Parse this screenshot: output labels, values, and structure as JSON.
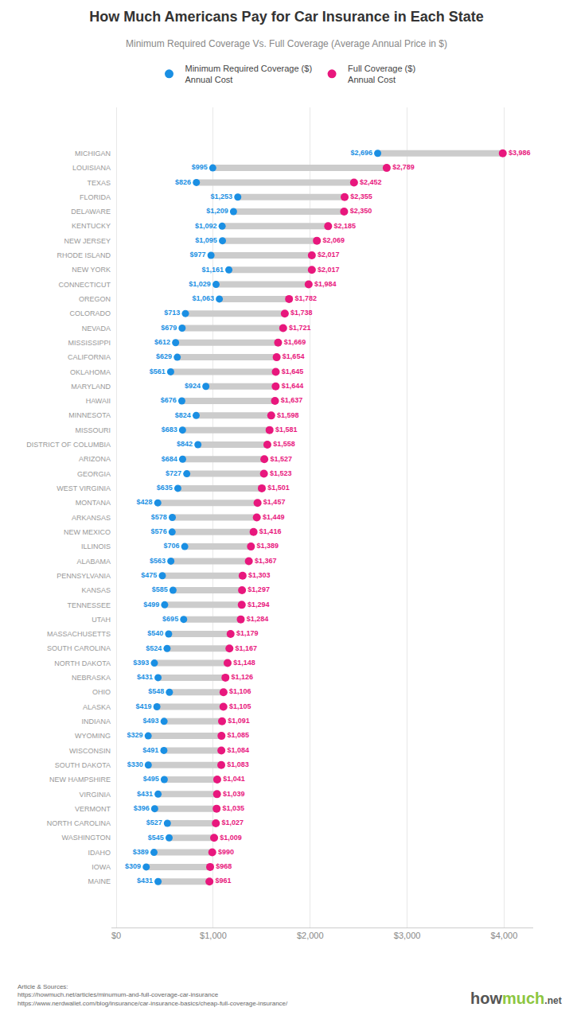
{
  "chart_data": {
    "type": "dumbbell",
    "title": "How Much Americans Pay for Car Insurance in Each State",
    "subtitle": "Minimum Required Coverage Vs. Full Coverage (Average Annual Price in $)",
    "orientation": "horizontal",
    "categories": [
      "MICHIGAN",
      "LOUISIANA",
      "TEXAS",
      "FLORIDA",
      "DELAWARE",
      "KENTUCKY",
      "NEW JERSEY",
      "RHODE ISLAND",
      "NEW YORK",
      "CONNECTICUT",
      "OREGON",
      "COLORADO",
      "NEVADA",
      "MISSISSIPPI",
      "CALIFORNIA",
      "OKLAHOMA",
      "MARYLAND",
      "HAWAII",
      "MINNESOTA",
      "MISSOURI",
      "DISTRICT OF COLUMBIA",
      "ARIZONA",
      "GEORGIA",
      "WEST VIRGINIA",
      "MONTANA",
      "ARKANSAS",
      "NEW MEXICO",
      "ILLINOIS",
      "ALABAMA",
      "PENNSYLVANIA",
      "KANSAS",
      "TENNESSEE",
      "UTAH",
      "MASSACHUSETTS",
      "SOUTH CAROLINA",
      "NORTH DAKOTA",
      "NEBRASKA",
      "OHIO",
      "ALASKA",
      "INDIANA",
      "WYOMING",
      "WISCONSIN",
      "SOUTH DAKOTA",
      "NEW HAMPSHIRE",
      "VIRGINIA",
      "VERMONT",
      "NORTH CAROLINA",
      "WASHINGTON",
      "IDAHO",
      "IOWA",
      "MAINE"
    ],
    "series": [
      {
        "name": "Minimum Required Coverage ($)\nAnnual Cost",
        "color": "#1a8fe3",
        "values": [
          2696,
          995,
          826,
          1253,
          1209,
          1092,
          1095,
          977,
          1161,
          1029,
          1063,
          713,
          679,
          612,
          629,
          561,
          924,
          676,
          824,
          683,
          842,
          684,
          727,
          635,
          428,
          578,
          576,
          706,
          563,
          475,
          585,
          499,
          695,
          540,
          524,
          393,
          431,
          548,
          419,
          493,
          329,
          491,
          330,
          495,
          431,
          396,
          527,
          545,
          389,
          309,
          431
        ],
        "value_labels": [
          "$2,696",
          "$995",
          "$826",
          "$1,253",
          "$1,209",
          "$1,092",
          "$1,095",
          "$977",
          "$1,161",
          "$1,029",
          "$1,063",
          "$713",
          "$679",
          "$612",
          "$629",
          "$561",
          "$924",
          "$676",
          "$824",
          "$683",
          "$842",
          "$684",
          "$727",
          "$635",
          "$428",
          "$578",
          "$576",
          "$706",
          "$563",
          "$475",
          "$585",
          "$499",
          "$695",
          "$540",
          "$524",
          "$393",
          "$431",
          "$548",
          "$419",
          "$493",
          "$329",
          "$491",
          "$330",
          "$495",
          "$431",
          "$396",
          "$527",
          "$545",
          "$389",
          "$309",
          "$431"
        ]
      },
      {
        "name": "Full Coverage ($)\nAnnual Cost",
        "color": "#e8177d",
        "values": [
          3986,
          2789,
          2452,
          2355,
          2350,
          2185,
          2069,
          2017,
          2017,
          1984,
          1782,
          1738,
          1721,
          1669,
          1654,
          1645,
          1644,
          1637,
          1598,
          1581,
          1558,
          1527,
          1523,
          1501,
          1457,
          1449,
          1416,
          1389,
          1367,
          1303,
          1297,
          1294,
          1284,
          1179,
          1167,
          1148,
          1126,
          1106,
          1105,
          1091,
          1085,
          1084,
          1083,
          1041,
          1039,
          1035,
          1027,
          1009,
          990,
          968,
          961
        ],
        "value_labels": [
          "$3,986",
          "$2,789",
          "$2,452",
          "$2,355",
          "$2,350",
          "$2,185",
          "$2,069",
          "$2,017",
          "$2,017",
          "$1,984",
          "$1,782",
          "$1,738",
          "$1,721",
          "$1,669",
          "$1,654",
          "$1,645",
          "$1,644",
          "$1,637",
          "$1,598",
          "$1,581",
          "$1,558",
          "$1,527",
          "$1,523",
          "$1,501",
          "$1,457",
          "$1,449",
          "$1,416",
          "$1,389",
          "$1,367",
          "$1,303",
          "$1,297",
          "$1,294",
          "$1,284",
          "$1,179",
          "$1,167",
          "$1,148",
          "$1,126",
          "$1,106",
          "$1,105",
          "$1,091",
          "$1,085",
          "$1,084",
          "$1,083",
          "$1,041",
          "$1,039",
          "$1,035",
          "$1,027",
          "$1,009",
          "$990",
          "$968",
          "$961"
        ]
      }
    ],
    "xlim": [
      -50,
      4300
    ],
    "xticks": [
      {
        "value": 0,
        "label": "$0"
      },
      {
        "value": 1000,
        "label": "$1,000"
      },
      {
        "value": 2000,
        "label": "$2,000"
      },
      {
        "value": 3000,
        "label": "$3,000"
      },
      {
        "value": 4000,
        "label": "$4,000"
      }
    ],
    "grid": true,
    "data_labels": true,
    "legend": "top",
    "annotations": [
      {
        "text": "Article & Sources:\nhttps://howmuch.net/articles/minumum-and-full-coverage-car-insurance\nhttps://www.nerdwallet.com/blog/insurance/car-insurance-basics/cheap-full-coverage-insurance/"
      },
      {
        "text": "how",
        "color": "#555555"
      },
      {
        "text": "much",
        "color": "#8dc63f"
      },
      {
        "text": ".net",
        "color": "#555555"
      }
    ]
  }
}
